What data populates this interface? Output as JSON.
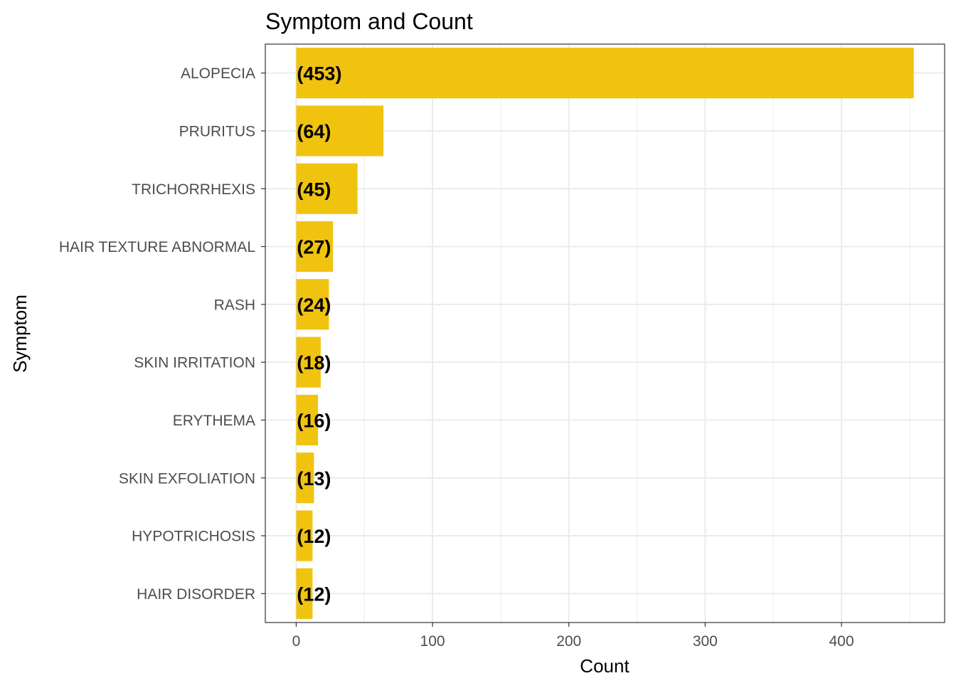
{
  "chart_data": {
    "type": "bar",
    "orientation": "horizontal",
    "title": "Symptom and Count",
    "xlabel": "Count",
    "ylabel": "Symptom",
    "categories": [
      "ALOPECIA",
      "PRURITUS",
      "TRICHORRHEXIS",
      "HAIR TEXTURE ABNORMAL",
      "RASH",
      "SKIN IRRITATION",
      "ERYTHEMA",
      "SKIN EXFOLIATION",
      "HYPOTRICHOSIS",
      "HAIR DISORDER"
    ],
    "values": [
      453,
      64,
      45,
      27,
      24,
      18,
      16,
      13,
      12,
      12
    ],
    "data_labels": [
      "(453)",
      "(64)",
      "(45)",
      "(27)",
      "(24)",
      "(18)",
      "(16)",
      "(13)",
      "(12)",
      "(12)"
    ],
    "xlim": [
      -22.65,
      475.65
    ],
    "xticks": [
      0,
      100,
      200,
      300,
      400
    ],
    "xtick_labels": [
      "0",
      "100",
      "200",
      "300",
      "400"
    ],
    "grid": true,
    "legend": "none",
    "bar_color": "#F0C30F",
    "grid_color": "#EBEBEB",
    "panel_border_color": "#333333"
  }
}
